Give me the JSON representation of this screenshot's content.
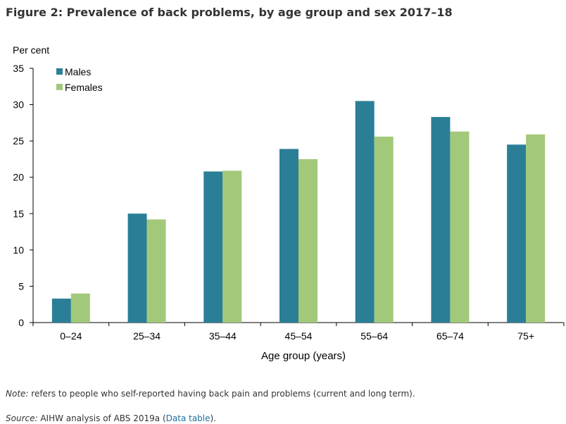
{
  "figure": {
    "title": "Figure 2: Prevalence of back problems, by age group and sex 2017–18"
  },
  "chart_data": {
    "type": "bar",
    "title": "",
    "ylabel": "Per cent",
    "xlabel": "Age group (years)",
    "ylim": [
      0,
      35
    ],
    "yticks": [
      "0",
      "5",
      "10",
      "15",
      "20",
      "25",
      "30",
      "35"
    ],
    "categories": [
      "0–24",
      "25–34",
      "35–44",
      "45–54",
      "55–64",
      "65–74",
      "75+"
    ],
    "series": [
      {
        "name": "Males",
        "color": "#2a7f97",
        "values": [
          3.3,
          15.0,
          20.8,
          23.9,
          30.5,
          28.3,
          24.5
        ]
      },
      {
        "name": "Females",
        "color": "#a2c97a",
        "values": [
          4.0,
          14.2,
          20.9,
          22.5,
          25.6,
          26.3,
          25.9
        ]
      }
    ],
    "grid": false,
    "legend": "top-left"
  },
  "note": {
    "label": "Note:",
    "text": " refers to people who self-reported having back pain and problems (current and long term)."
  },
  "source": {
    "label": "Source:",
    "text": " AIHW analysis of ABS 2019a (",
    "link": "Data table",
    "end": ")."
  }
}
